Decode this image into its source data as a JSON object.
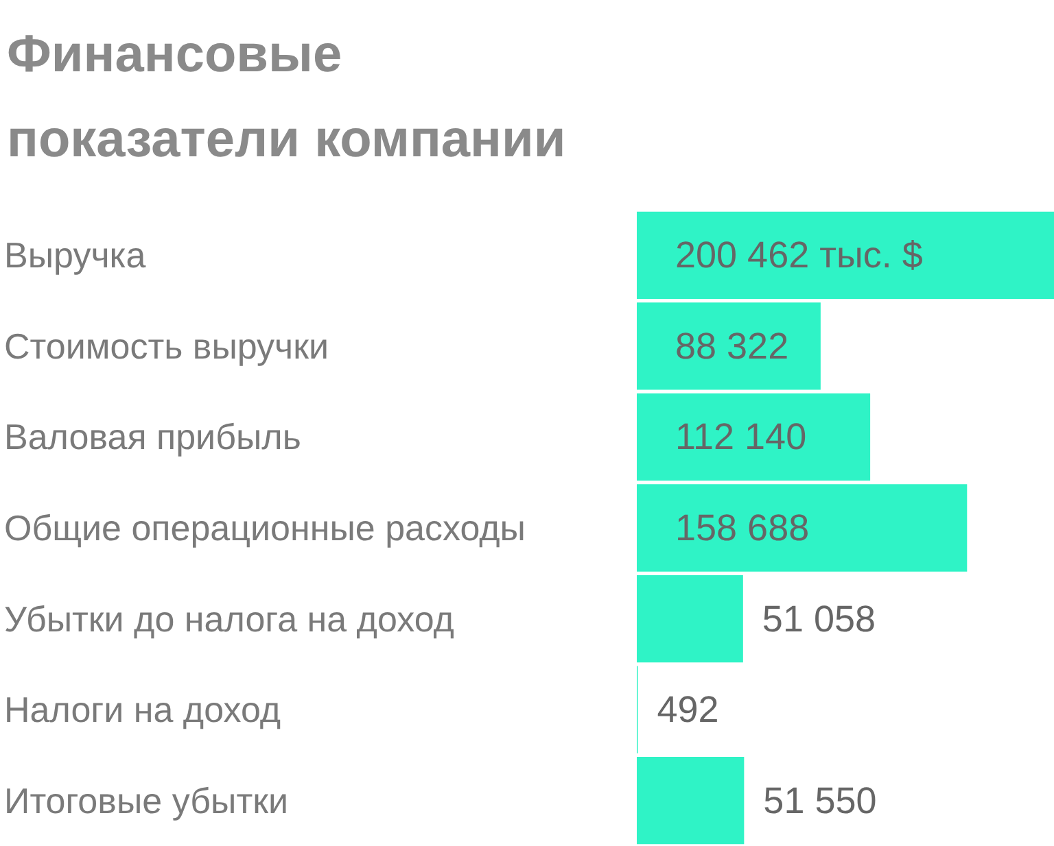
{
  "chart_data": {
    "type": "bar",
    "orientation": "horizontal",
    "title": "Финансовые показатели компании",
    "categories": [
      "Выручка",
      "Стоимость выручки",
      "Валовая прибыль",
      "Общие операционные расходы",
      "Убытки до налога на доход",
      "Налоги на доход",
      "Итоговые убытки"
    ],
    "values": [
      200462,
      88322,
      112140,
      158688,
      51058,
      492,
      51550
    ],
    "value_labels": [
      "200 462 тыс. $",
      "88 322",
      "112 140",
      "158 688",
      "51 058",
      "492",
      "51 550"
    ],
    "color": "#2ff3c6"
  }
}
